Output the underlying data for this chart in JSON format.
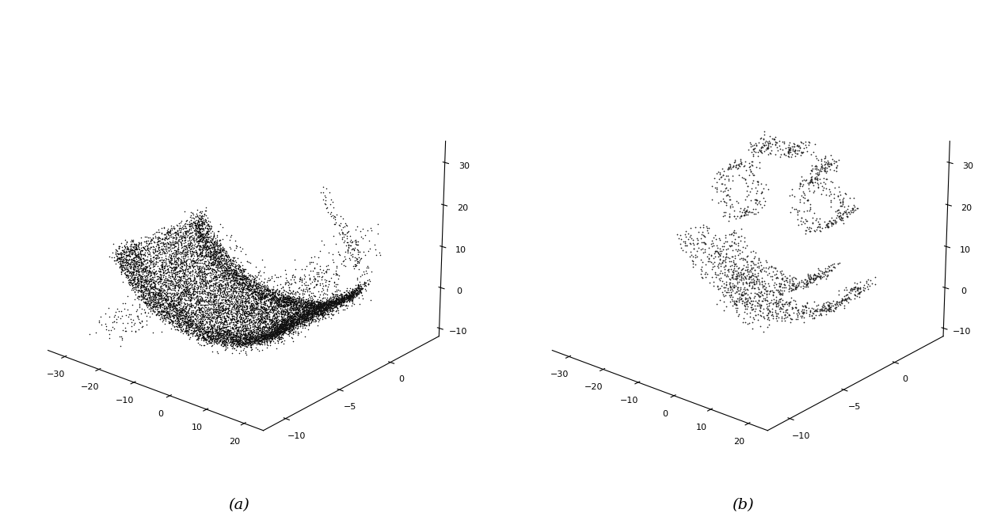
{
  "fig_width": 12.4,
  "fig_height": 6.72,
  "bg_color": "#ffffff",
  "subplot_a": {
    "label": "(a)",
    "elev": 22,
    "azim": -50,
    "xlim": [
      -35,
      25
    ],
    "ylim": [
      -12,
      5
    ],
    "zlim": [
      -12,
      35
    ],
    "xticks": [
      -30,
      -20,
      -10,
      0,
      10,
      20
    ],
    "yticks": [
      0,
      -5,
      -10
    ],
    "zticks": [
      -10,
      0,
      10,
      20,
      30
    ],
    "point_color": "#111111",
    "point_size": 1.2,
    "n_points": 12000
  },
  "subplot_b": {
    "label": "(b)",
    "elev": 22,
    "azim": -50,
    "xlim": [
      -35,
      25
    ],
    "ylim": [
      -12,
      5
    ],
    "zlim": [
      -12,
      35
    ],
    "xticks": [
      -30,
      -20,
      -10,
      0,
      10,
      20
    ],
    "yticks": [
      0,
      -5,
      -10
    ],
    "zticks": [
      -10,
      0,
      10,
      20,
      30
    ],
    "point_color": "#222222",
    "point_size": 1.5,
    "n_points": 3000
  }
}
